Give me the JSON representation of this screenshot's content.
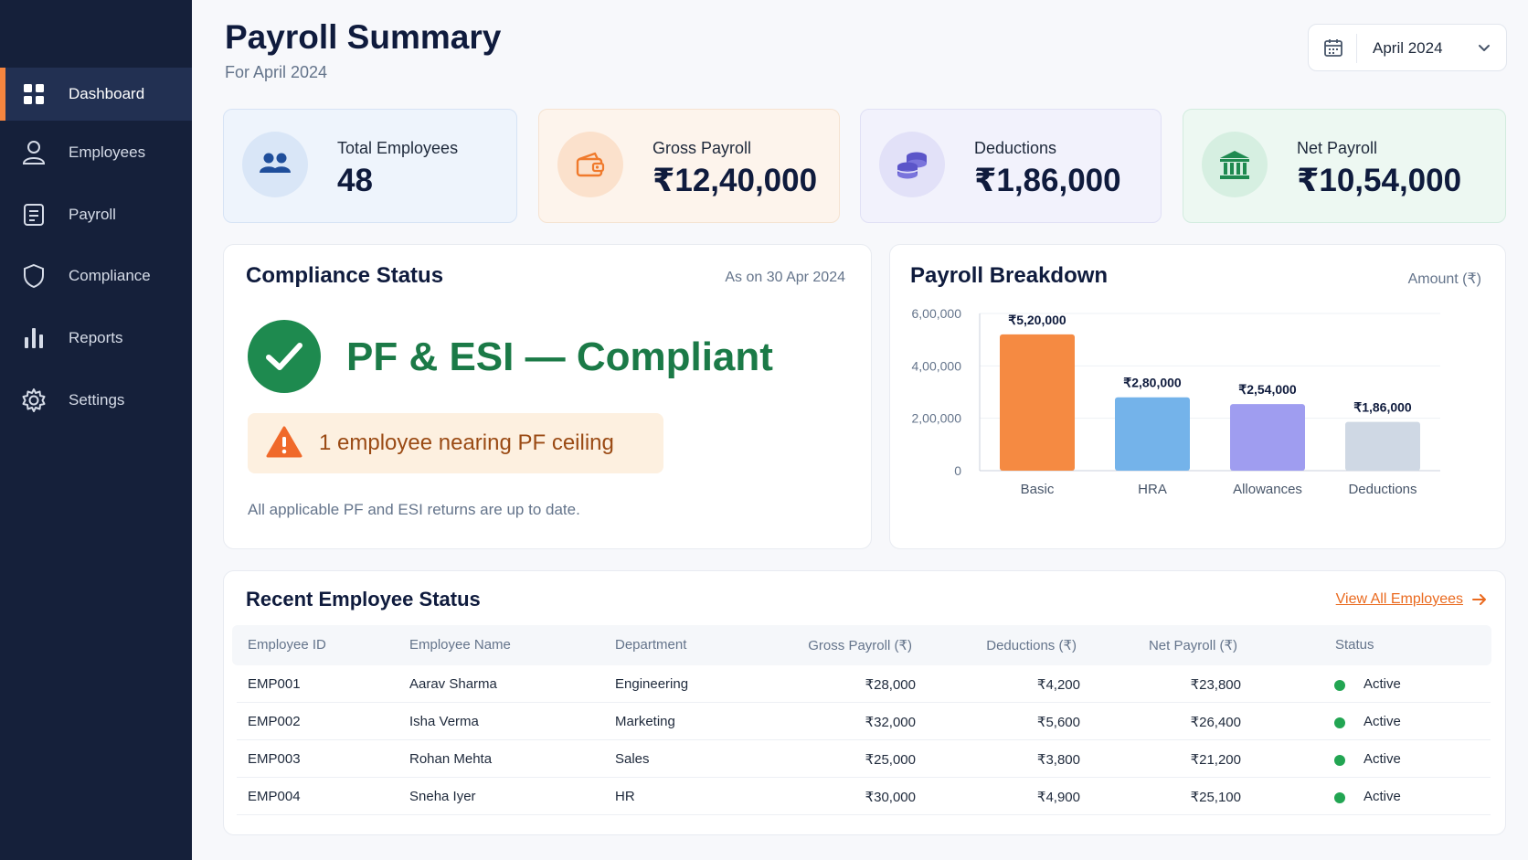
{
  "sidebar": {
    "items": [
      {
        "label": "Dashboard",
        "icon": "grid-icon",
        "active": true
      },
      {
        "label": "Employees",
        "icon": "user-icon",
        "active": false
      },
      {
        "label": "Payroll",
        "icon": "document-icon",
        "active": false
      },
      {
        "label": "Compliance",
        "icon": "shield-icon",
        "active": false
      },
      {
        "label": "Reports",
        "icon": "bar-chart-icon",
        "active": false
      },
      {
        "label": "Settings",
        "icon": "gear-icon",
        "active": false
      }
    ]
  },
  "header": {
    "title": "Payroll Summary",
    "subtitle": "For April 2024",
    "month_selector": {
      "value": "April 2024",
      "icon": "calendar-icon"
    }
  },
  "stats": [
    {
      "label": "Total Employees",
      "value": "48",
      "icon": "users-icon",
      "accent": "#1f4e9b"
    },
    {
      "label": "Gross Payroll",
      "value": "₹12,40,000",
      "icon": "wallet-icon",
      "accent": "#f07a2c"
    },
    {
      "label": "Deductions",
      "value": "₹1,86,000",
      "icon": "coins-icon",
      "accent": "#5b55c9"
    },
    {
      "label": "Net Payroll",
      "value": "₹10,54,000",
      "icon": "bank-icon",
      "accent": "#1f8a50"
    }
  ],
  "compliance": {
    "title": "Compliance Status",
    "as_on": "As on 30 Apr 2024",
    "status": "PF & ESI — Compliant",
    "alert": "1 employee nearing PF ceiling",
    "note": "All applicable PF and ESI returns are up to date."
  },
  "breakdown": {
    "title": "Payroll Breakdown",
    "unit_label": "Amount (₹)"
  },
  "chart_data": {
    "type": "bar",
    "title": "Payroll Breakdown",
    "ylabel": "Amount (₹)",
    "categories": [
      "Basic",
      "HRA",
      "Allowances",
      "Deductions"
    ],
    "values": [
      520000,
      280000,
      254000,
      186000
    ],
    "value_labels": [
      "₹5,20,000",
      "₹2,80,000",
      "₹2,54,000",
      "₹1,86,000"
    ],
    "colors": [
      "#f58a42",
      "#74b3ea",
      "#9f9df0",
      "#cfd8e4"
    ],
    "ylim": [
      0,
      600000
    ],
    "yticks": [
      0,
      200000,
      400000,
      600000
    ],
    "ytick_labels": [
      "0",
      "2,00,000",
      "4,00,000",
      "6,00,000"
    ],
    "grid": true
  },
  "table": {
    "title": "Recent Employee Status",
    "view_all": "View All Employees",
    "columns": [
      "Employee ID",
      "Employee Name",
      "Department",
      "Gross Payroll (₹)",
      "Deductions (₹)",
      "Net Payroll (₹)",
      "Status"
    ],
    "rows": [
      [
        "EMP001",
        "Aarav Sharma",
        "Engineering",
        "₹28,000",
        "₹4,200",
        "₹23,800",
        "Active"
      ],
      [
        "EMP002",
        "Isha Verma",
        "Marketing",
        "₹32,000",
        "₹5,600",
        "₹26,400",
        "Active"
      ],
      [
        "EMP003",
        "Rohan Mehta",
        "Sales",
        "₹25,000",
        "₹3,800",
        "₹21,200",
        "Active"
      ],
      [
        "EMP004",
        "Sneha Iyer",
        "HR",
        "₹30,000",
        "₹4,900",
        "₹25,100",
        "Active"
      ]
    ]
  }
}
